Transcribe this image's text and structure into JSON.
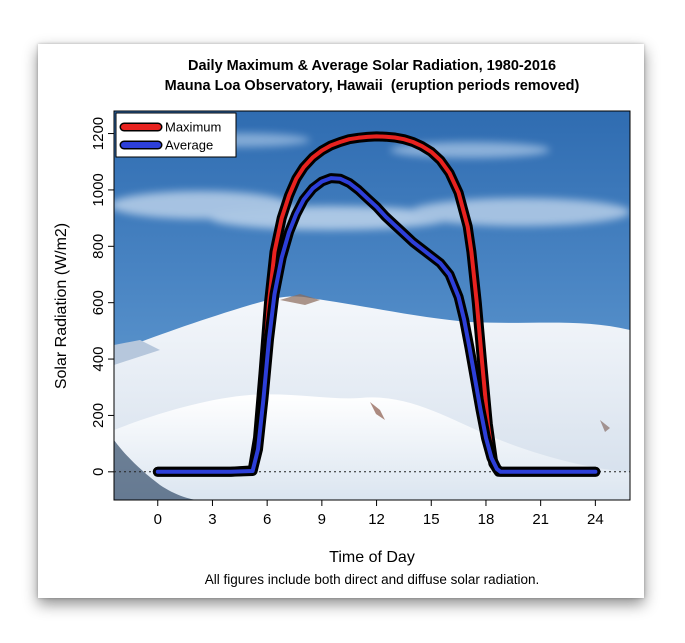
{
  "chart_data": {
    "type": "line",
    "title": "Daily Maximum & Average Solar Radiation, 1980-2016",
    "subtitle": "Mauna Loa Observatory, Hawaii  (eruption periods removed)",
    "xlabel": "Time of Day",
    "ylabel": "Solar Radiation (W/m2)",
    "caption": "All figures include both direct and diffuse solar radiation.",
    "xlim": [
      -2.4,
      25.9
    ],
    "ylim": [
      -100,
      1280
    ],
    "xticks": [
      0,
      3,
      6,
      9,
      12,
      15,
      18,
      21,
      24
    ],
    "yticks": [
      0,
      200,
      400,
      600,
      800,
      1000,
      1200
    ],
    "grid": false,
    "legend": "top-left",
    "background": "photo of snow-capped Mauna Kea under blue sky",
    "series": [
      {
        "name": "Maximum",
        "color": "#e8221f",
        "x": [
          0,
          4,
          5.2,
          5.5,
          5.8,
          6.1,
          6.4,
          6.8,
          7.2,
          7.6,
          8,
          8.5,
          9,
          9.5,
          10,
          10.5,
          11,
          11.5,
          12,
          12.5,
          13,
          13.5,
          14,
          14.5,
          15,
          15.5,
          16,
          16.5,
          17,
          17.2,
          17.5,
          17.8,
          18.1,
          18.4,
          18.7,
          19,
          20,
          24
        ],
        "y": [
          0,
          0,
          5,
          120,
          350,
          600,
          780,
          900,
          980,
          1040,
          1080,
          1115,
          1140,
          1158,
          1170,
          1180,
          1185,
          1188,
          1190,
          1189,
          1186,
          1180,
          1170,
          1155,
          1135,
          1105,
          1060,
          990,
          870,
          780,
          600,
          380,
          170,
          30,
          0,
          0,
          0,
          0
        ]
      },
      {
        "name": "Average",
        "color": "#2d3fd9",
        "x": [
          0,
          4,
          5.2,
          5.5,
          5.8,
          6.1,
          6.4,
          6.8,
          7.2,
          7.6,
          8,
          8.5,
          9,
          9.5,
          10,
          10.5,
          11,
          11.5,
          12,
          12.5,
          13,
          13.5,
          14,
          14.5,
          15,
          15.5,
          16,
          16.5,
          16.8,
          17.1,
          17.4,
          17.7,
          18,
          18.3,
          18.6,
          18.8,
          19,
          20,
          24
        ],
        "y": [
          0,
          0,
          3,
          80,
          260,
          470,
          630,
          760,
          850,
          915,
          965,
          1005,
          1030,
          1042,
          1040,
          1025,
          1000,
          970,
          940,
          905,
          875,
          845,
          815,
          790,
          765,
          740,
          700,
          620,
          540,
          440,
          330,
          220,
          120,
          50,
          10,
          0,
          0,
          0,
          0
        ]
      }
    ]
  }
}
